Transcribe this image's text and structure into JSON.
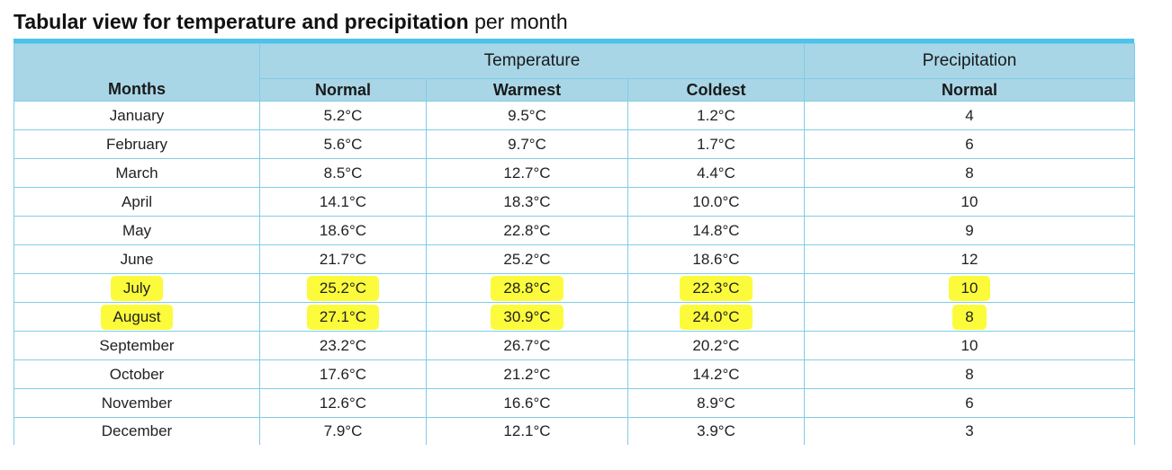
{
  "page": {
    "title_bold": "Tabular view for temperature and precipitation",
    "title_rest": " per month"
  },
  "table": {
    "group_headers": {
      "temperature": "Temperature",
      "precipitation": "Precipitation"
    },
    "column_headers": {
      "months": "Months",
      "temp_normal": "Normal",
      "warmest": "Warmest",
      "coldest": "Coldest",
      "precip_normal": "Normal"
    },
    "rows": [
      {
        "month": "January",
        "normal": "5.2°C",
        "warmest": "9.5°C",
        "coldest": "1.2°C",
        "precip": "4",
        "highlighted": false
      },
      {
        "month": "February",
        "normal": "5.6°C",
        "warmest": "9.7°C",
        "coldest": "1.7°C",
        "precip": "6",
        "highlighted": false
      },
      {
        "month": "March",
        "normal": "8.5°C",
        "warmest": "12.7°C",
        "coldest": "4.4°C",
        "precip": "8",
        "highlighted": false
      },
      {
        "month": "April",
        "normal": "14.1°C",
        "warmest": "18.3°C",
        "coldest": "10.0°C",
        "precip": "10",
        "highlighted": false
      },
      {
        "month": "May",
        "normal": "18.6°C",
        "warmest": "22.8°C",
        "coldest": "14.8°C",
        "precip": "9",
        "highlighted": false
      },
      {
        "month": "June",
        "normal": "21.7°C",
        "warmest": "25.2°C",
        "coldest": "18.6°C",
        "precip": "12",
        "highlighted": false
      },
      {
        "month": "July",
        "normal": "25.2°C",
        "warmest": "28.8°C",
        "coldest": "22.3°C",
        "precip": "10",
        "highlighted": true
      },
      {
        "month": "August",
        "normal": "27.1°C",
        "warmest": "30.9°C",
        "coldest": "24.0°C",
        "precip": "8",
        "highlighted": true
      },
      {
        "month": "September",
        "normal": "23.2°C",
        "warmest": "26.7°C",
        "coldest": "20.2°C",
        "precip": "10",
        "highlighted": false
      },
      {
        "month": "October",
        "normal": "17.6°C",
        "warmest": "21.2°C",
        "coldest": "14.2°C",
        "precip": "8",
        "highlighted": false
      },
      {
        "month": "November",
        "normal": "12.6°C",
        "warmest": "16.6°C",
        "coldest": "8.9°C",
        "precip": "6",
        "highlighted": false
      },
      {
        "month": "December",
        "normal": "7.9°C",
        "warmest": "12.1°C",
        "coldest": "3.9°C",
        "precip": "3",
        "highlighted": false
      }
    ]
  },
  "colors": {
    "header_bg": "#a8d6e7",
    "accent_bar": "#4cc3ec",
    "border": "#80cde6",
    "highlighter": "#fbfb3c"
  }
}
